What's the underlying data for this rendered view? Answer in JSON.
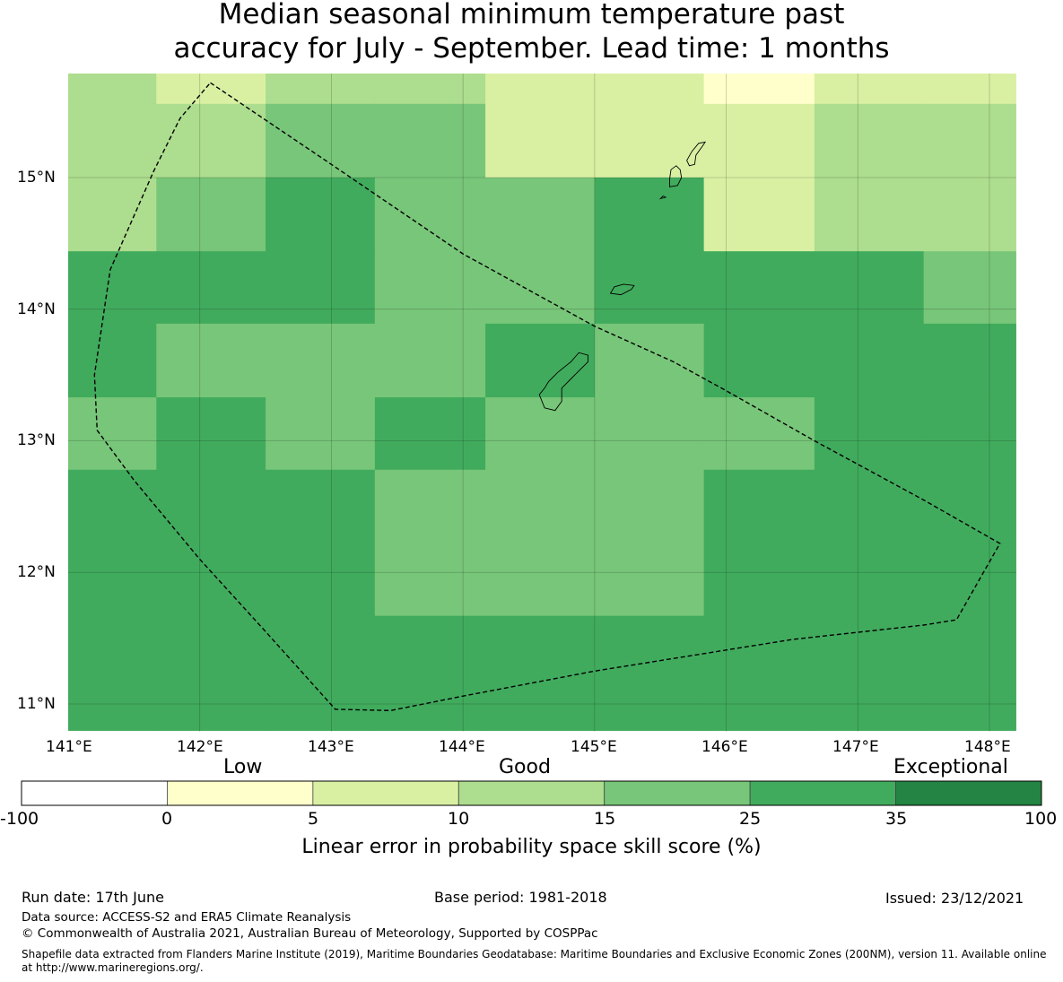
{
  "title_lines": [
    "Median seasonal minimum temperature past",
    "accuracy for July - September. Lead time: 1 months"
  ],
  "map": {
    "lon_range": [
      141.0,
      148.2
    ],
    "lat_range": [
      10.8,
      15.8
    ],
    "x_ticks": [
      141,
      142,
      143,
      144,
      145,
      146,
      147,
      148
    ],
    "x_tick_labels": [
      "141°E",
      "142°E",
      "143°E",
      "144°E",
      "145°E",
      "146°E",
      "147°E",
      "148°E"
    ],
    "y_ticks": [
      11,
      12,
      13,
      14,
      15
    ],
    "y_tick_labels": [
      "11°N",
      "12°N",
      "13°N",
      "14°N",
      "15°N"
    ],
    "grid_lon_edges": [
      141.0,
      141.67,
      142.5,
      143.33,
      144.17,
      145.0,
      145.83,
      146.67,
      147.5,
      148.2
    ],
    "grid_lat_edges": [
      15.8,
      15.56,
      15.0,
      14.44,
      13.89,
      13.33,
      12.78,
      12.22,
      11.67,
      11.11,
      10.8
    ],
    "cell_classes": [
      [
        3,
        2,
        3,
        3,
        2,
        2,
        1,
        2,
        2
      ],
      [
        3,
        3,
        4,
        4,
        2,
        2,
        2,
        3,
        3
      ],
      [
        3,
        4,
        5,
        4,
        4,
        5,
        2,
        3,
        3
      ],
      [
        5,
        5,
        5,
        4,
        4,
        5,
        5,
        5,
        4
      ],
      [
        5,
        4,
        4,
        4,
        5,
        4,
        5,
        5,
        5
      ],
      [
        4,
        5,
        4,
        5,
        4,
        4,
        4,
        5,
        5
      ],
      [
        5,
        5,
        5,
        4,
        4,
        4,
        5,
        5,
        5
      ],
      [
        5,
        5,
        5,
        4,
        4,
        4,
        5,
        5,
        5
      ],
      [
        5,
        5,
        5,
        5,
        5,
        5,
        5,
        5,
        5
      ],
      [
        5,
        5,
        5,
        5,
        5,
        5,
        5,
        5,
        5
      ]
    ],
    "eez_boundary": [
      [
        142.08,
        15.72
      ],
      [
        143.0,
        15.1
      ],
      [
        144.0,
        14.42
      ],
      [
        145.0,
        13.87
      ],
      [
        145.6,
        13.6
      ],
      [
        146.0,
        13.38
      ],
      [
        146.67,
        13.0
      ],
      [
        147.5,
        12.55
      ],
      [
        148.08,
        12.22
      ],
      [
        147.75,
        11.64
      ],
      [
        147.5,
        11.6
      ],
      [
        146.5,
        11.49
      ],
      [
        145.0,
        11.25
      ],
      [
        144.0,
        11.06
      ],
      [
        143.45,
        10.95
      ],
      [
        143.03,
        10.96
      ],
      [
        142.5,
        11.55
      ],
      [
        142.0,
        12.1
      ],
      [
        141.5,
        12.7
      ],
      [
        141.22,
        13.08
      ],
      [
        141.2,
        13.5
      ],
      [
        141.32,
        14.3
      ],
      [
        141.65,
        15.05
      ],
      [
        141.85,
        15.45
      ],
      [
        142.08,
        15.72
      ]
    ],
    "islands": [
      [
        [
          144.62,
          13.25
        ],
        [
          144.7,
          13.23
        ],
        [
          144.75,
          13.3
        ],
        [
          144.75,
          13.4
        ],
        [
          144.85,
          13.5
        ],
        [
          144.95,
          13.6
        ],
        [
          144.95,
          13.65
        ],
        [
          144.88,
          13.67
        ],
        [
          144.82,
          13.6
        ],
        [
          144.72,
          13.52
        ],
        [
          144.65,
          13.45
        ],
        [
          144.62,
          13.4
        ],
        [
          144.58,
          13.35
        ],
        [
          144.62,
          13.25
        ]
      ],
      [
        [
          145.12,
          14.12
        ],
        [
          145.2,
          14.11
        ],
        [
          145.28,
          14.15
        ],
        [
          145.3,
          14.18
        ],
        [
          145.22,
          14.19
        ],
        [
          145.15,
          14.17
        ],
        [
          145.12,
          14.12
        ]
      ],
      [
        [
          145.57,
          14.93
        ],
        [
          145.63,
          14.94
        ],
        [
          145.66,
          15.0
        ],
        [
          145.65,
          15.06
        ],
        [
          145.62,
          15.09
        ],
        [
          145.58,
          15.06
        ],
        [
          145.57,
          14.99
        ],
        [
          145.57,
          14.93
        ]
      ],
      [
        [
          145.5,
          14.84
        ],
        [
          145.54,
          14.85
        ],
        [
          145.52,
          14.86
        ],
        [
          145.5,
          14.84
        ]
      ],
      [
        [
          145.72,
          15.09
        ],
        [
          145.76,
          15.1
        ],
        [
          145.77,
          15.17
        ],
        [
          145.82,
          15.24
        ],
        [
          145.84,
          15.27
        ],
        [
          145.79,
          15.26
        ],
        [
          145.74,
          15.2
        ],
        [
          145.7,
          15.13
        ],
        [
          145.72,
          15.09
        ]
      ]
    ]
  },
  "colorbar": {
    "category_labels": [
      "Low",
      "Good",
      "Exceptional"
    ],
    "tick_labels": [
      "-100",
      "0",
      "5",
      "10",
      "15",
      "25",
      "35",
      "100"
    ],
    "colors": [
      "#ffffff",
      "#ffffcc",
      "#d9f0a3",
      "#addd8e",
      "#78c679",
      "#41ab5d",
      "#238443"
    ],
    "title": "Linear error in probability space skill score (%)"
  },
  "footer": {
    "run_date": "Run date: 17th June",
    "base_period": "Base period: 1981-2018",
    "issued": "Issued: 23/12/2021",
    "data_source": "Data source: ACCESS-S2 and ERA5 Climate Reanalysis",
    "copyright": "© Commonwealth of Australia 2021, Australian Bureau of Meteorology, Supported by COSPPac",
    "shapefile_line1": "Shapefile data extracted from Flanders Marine Institute (2019), Maritime Boundaries Geodatabase: Maritime Boundaries and Exclusive Economic Zones (200NM), version 11. Available online",
    "shapefile_line2": "at http://www.marineregions.org/."
  }
}
